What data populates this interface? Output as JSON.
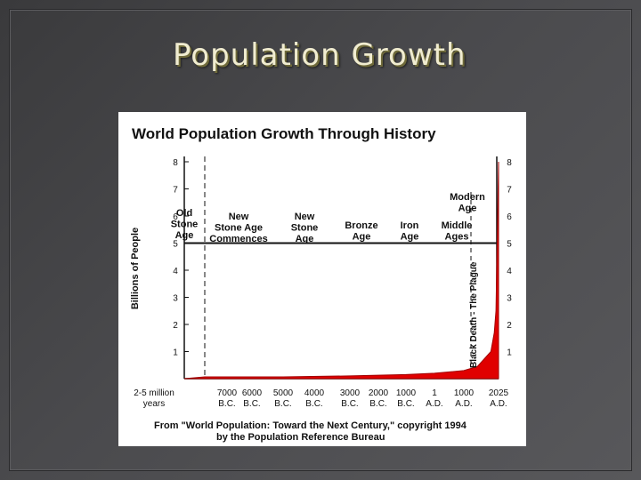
{
  "slide": {
    "title": "Population Growth"
  },
  "chart_data": {
    "type": "area",
    "title": "World Population Growth Through History",
    "ylabel": "Billions of People",
    "ylim": [
      0,
      8.5
    ],
    "y_ticks": [
      1,
      2,
      3,
      4,
      5,
      6,
      7,
      8
    ],
    "x_ticks": [
      {
        "id": "t0",
        "l1": "2-5 million",
        "l2": "years"
      },
      {
        "id": "t1",
        "l1": "7000",
        "l2": "B.C."
      },
      {
        "id": "t2",
        "l1": "6000",
        "l2": "B.C."
      },
      {
        "id": "t3",
        "l1": "5000",
        "l2": "B.C."
      },
      {
        "id": "t4",
        "l1": "4000",
        "l2": "B.C."
      },
      {
        "id": "t5",
        "l1": "3000",
        "l2": "B.C."
      },
      {
        "id": "t6",
        "l1": "2000",
        "l2": "B.C."
      },
      {
        "id": "t7",
        "l1": "1000",
        "l2": "B.C."
      },
      {
        "id": "t8",
        "l1": "1",
        "l2": "A.D."
      },
      {
        "id": "t9",
        "l1": "1000",
        "l2": "A.D."
      },
      {
        "id": "t10",
        "l1": "2025",
        "l2": "A.D."
      }
    ],
    "eras": [
      {
        "id": "old-stone-age",
        "lines": [
          "Old",
          "Stone",
          "Age"
        ]
      },
      {
        "id": "new-stone-age-commences",
        "lines": [
          "New",
          "Stone Age",
          "Commences"
        ]
      },
      {
        "id": "new-stone-age",
        "lines": [
          "New",
          "Stone",
          "Age"
        ]
      },
      {
        "id": "bronze-age",
        "lines": [
          "Bronze",
          "Age"
        ]
      },
      {
        "id": "iron-age",
        "lines": [
          "Iron",
          "Age"
        ]
      },
      {
        "id": "middle-ages",
        "lines": [
          "Middle",
          "Ages"
        ]
      },
      {
        "id": "modern-age",
        "lines": [
          "Modern",
          "Age"
        ]
      }
    ],
    "annotation": "Black Death - The Plague",
    "series": [
      {
        "x": [
          "7000 B.C.",
          "5000 B.C.",
          "3000 B.C.",
          "1000 B.C.",
          "1 A.D.",
          "1000 A.D.",
          "1400 A.D.",
          "1800 A.D.",
          "1900 A.D.",
          "1950 A.D.",
          "2000 A.D.",
          "2025 A.D."
        ],
        "values": [
          0.01,
          0.05,
          0.1,
          0.15,
          0.2,
          0.3,
          0.45,
          1.0,
          1.7,
          2.5,
          6.1,
          8.0
        ]
      }
    ],
    "source": [
      "From \"World Population: Toward the Next Century,\" copyright 1994",
      "by the Population Reference Bureau"
    ]
  }
}
